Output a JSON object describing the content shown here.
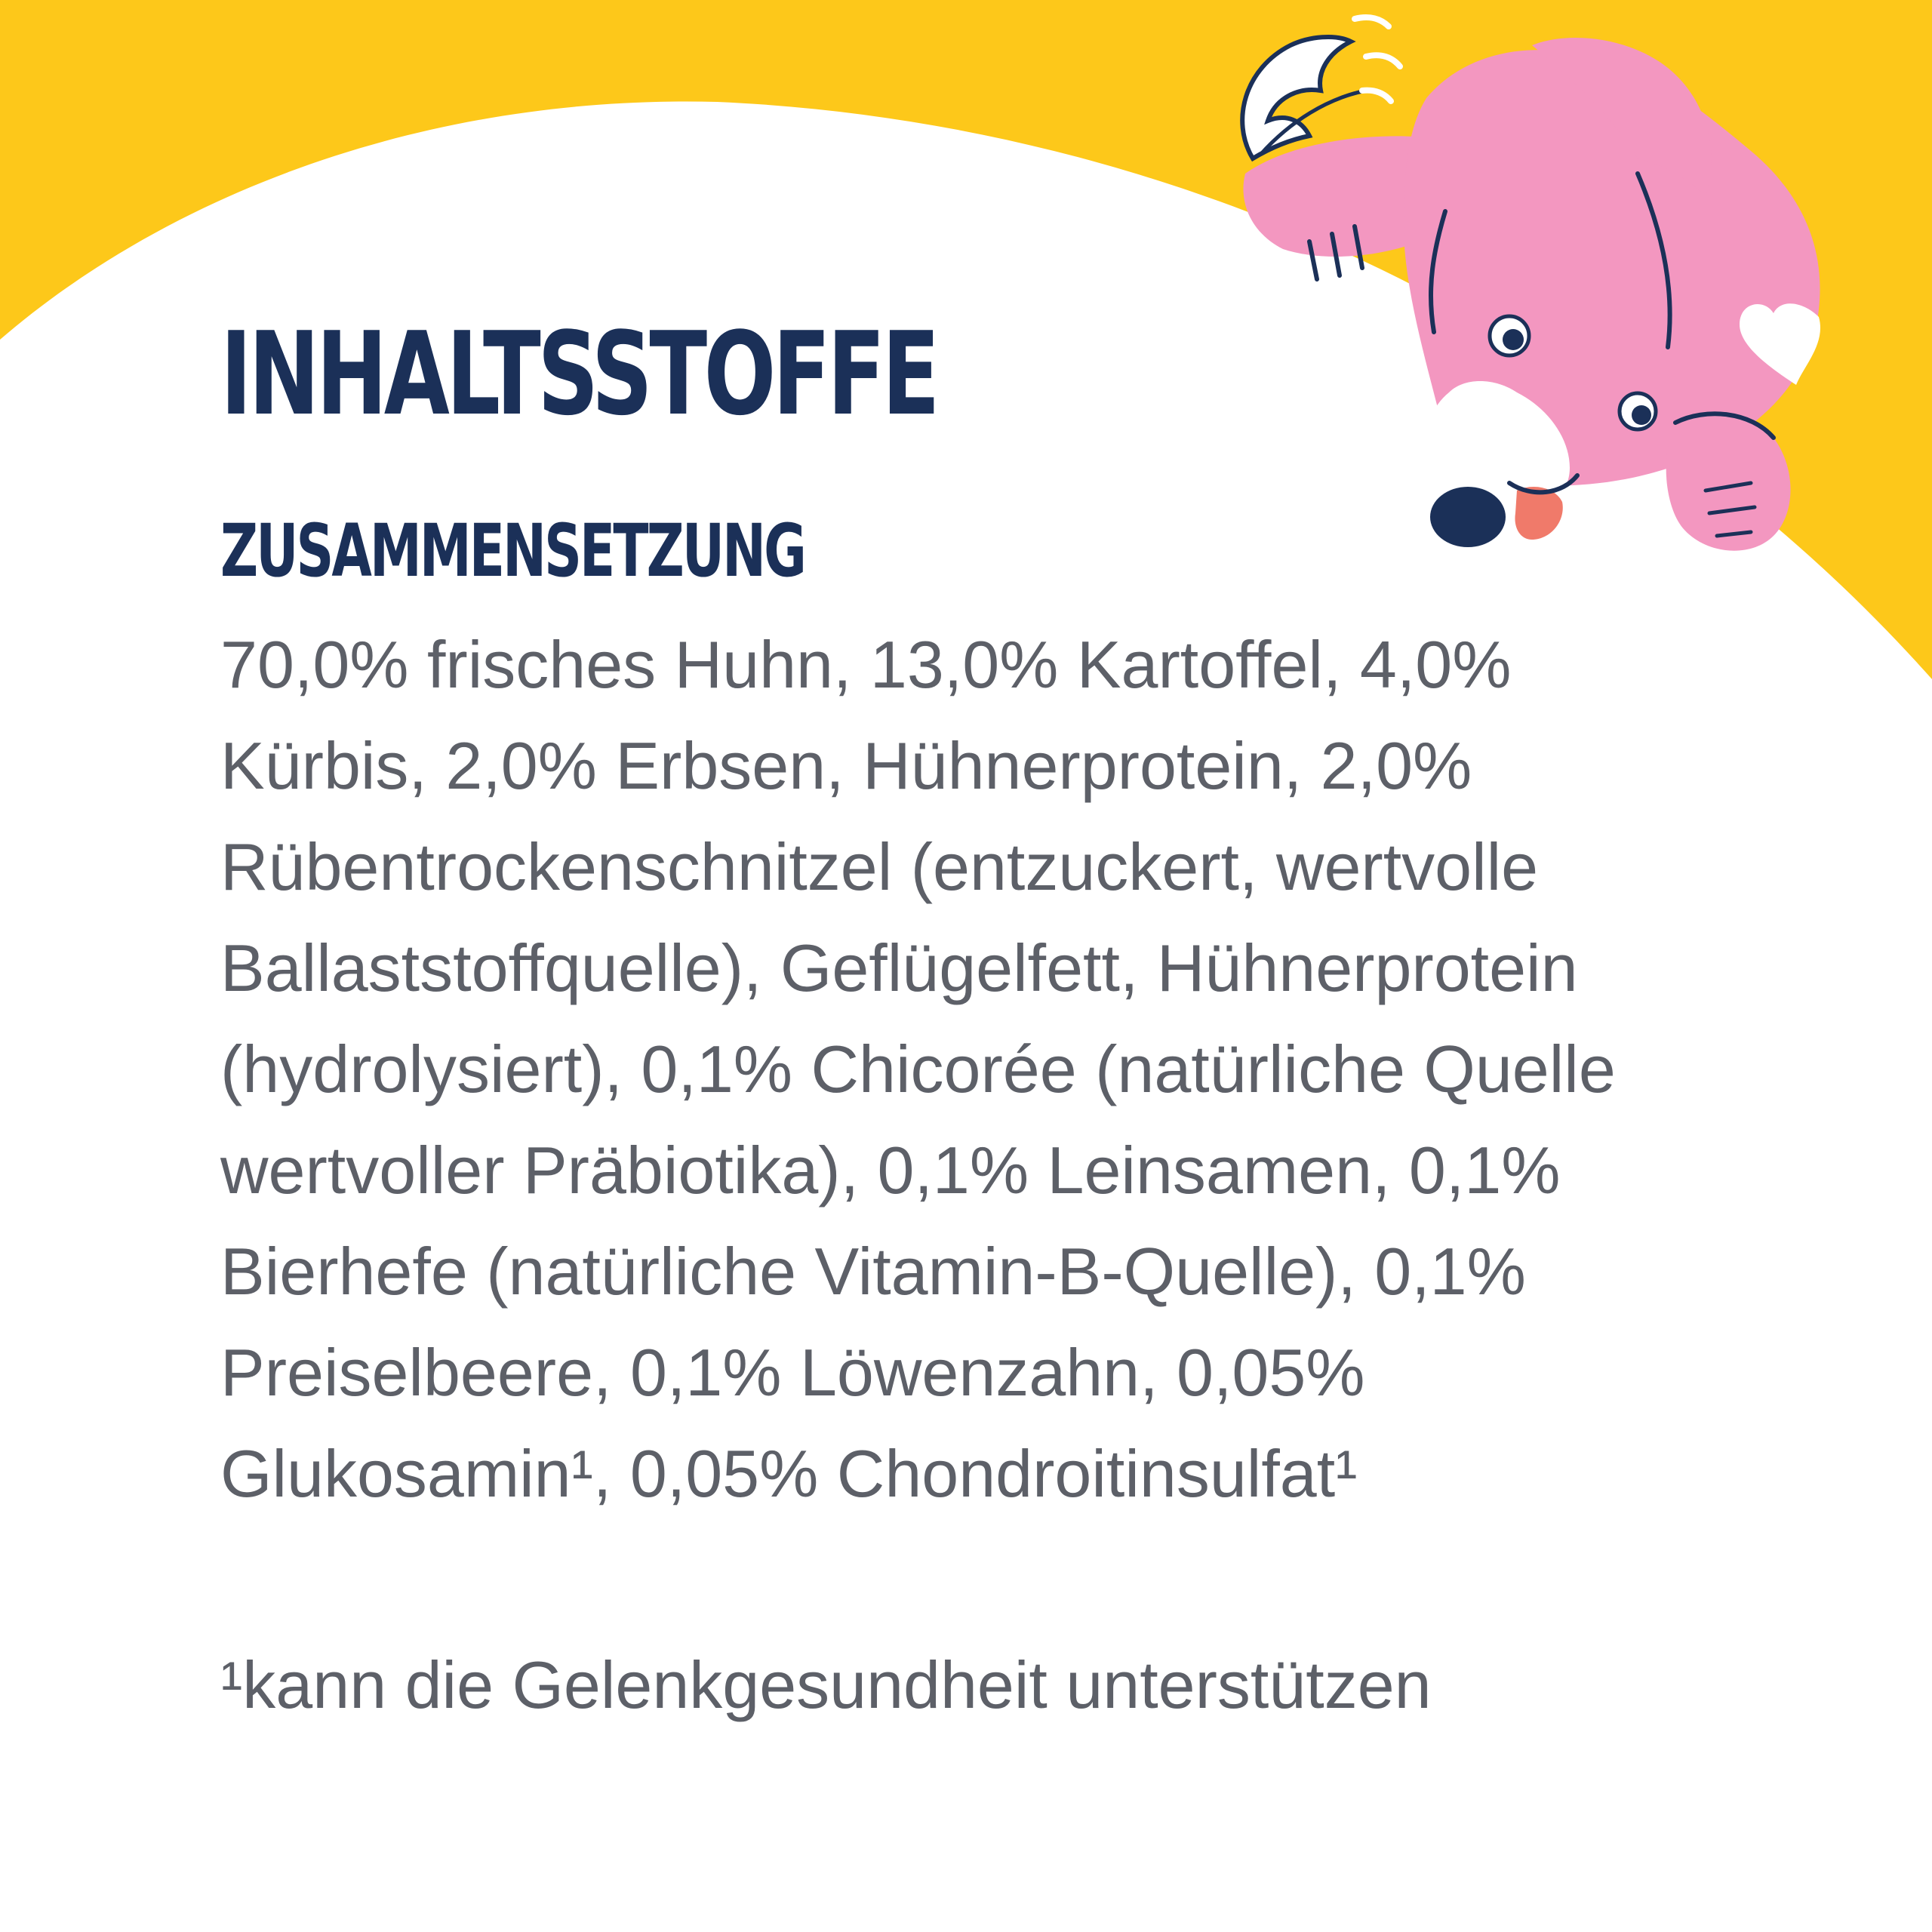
{
  "heading": {
    "title": "INHALTSSTOFFE",
    "subtitle": "ZUSAMMENSETZUNG"
  },
  "ingredients": {
    "lines": [
      "70,0% frisches Huhn, 13,0% Kartoffel, 4,0%",
      "Kürbis, 2,0% Erbsen, Hühnerprotein, 2,0%",
      "Rübentrockenschnitzel (entzuckert, wertvolle",
      "Ballaststoffquelle), Geflügelfett, Hühnerprotein",
      "(hydrolysiert), 0,1% Chicorée (natürliche Quelle",
      "wertvoller Präbiotika), 0,1% Leinsamen, 0,1%",
      "Bierhefe (natürliche Vitamin-B-Quelle), 0,1%",
      "Preiselbeere, 0,1% Löwenzahn, 0,05%",
      "Glukosamin¹, 0,05% Chondroitinsulfat¹"
    ]
  },
  "footnote": "¹kann die Gelenkgesundheit unterstützen",
  "illustration": {
    "name": "pink-dog-mascot-icon"
  },
  "colors": {
    "background": "#ffffff",
    "accent_yellow": "#fdc81a",
    "heading_navy": "#1b3058",
    "body_gray": "#5d6068",
    "dog_pink": "#f397c0",
    "dog_outline": "#1b3058"
  }
}
